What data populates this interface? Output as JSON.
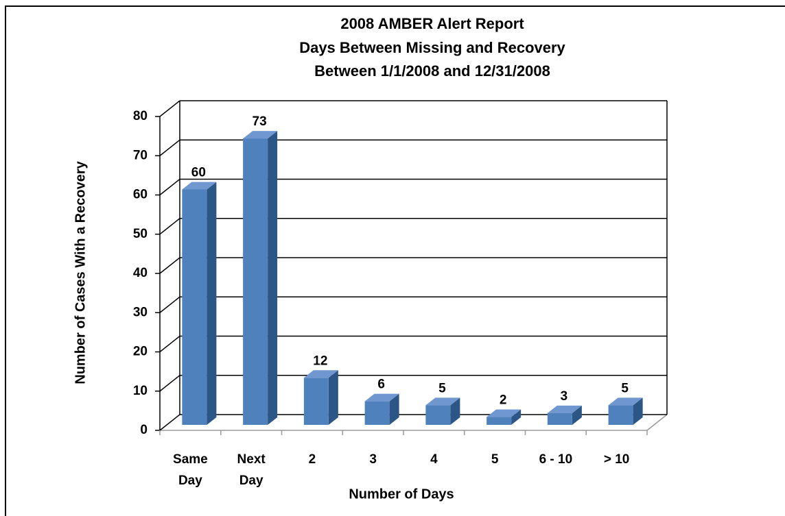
{
  "chart_data": {
    "type": "bar3d",
    "title": "2008 AMBER Alert Report",
    "subtitle": [
      "Days Between Missing and Recovery",
      "Between 1/1/2008 and 12/31/2008"
    ],
    "x_label": "Number of Days",
    "y_label": "Number of Cases With a Recovery",
    "categories": [
      "Same Day",
      "Next Day",
      "2",
      "3",
      "4",
      "5",
      "6 - 10",
      "> 10"
    ],
    "values": [
      60,
      73,
      12,
      6,
      5,
      2,
      3,
      5
    ],
    "color": "#4f81bd",
    "ylim": [
      0,
      80
    ],
    "yticks": [
      0,
      10,
      20,
      30,
      40,
      50,
      60,
      70,
      80
    ],
    "grid": true
  }
}
